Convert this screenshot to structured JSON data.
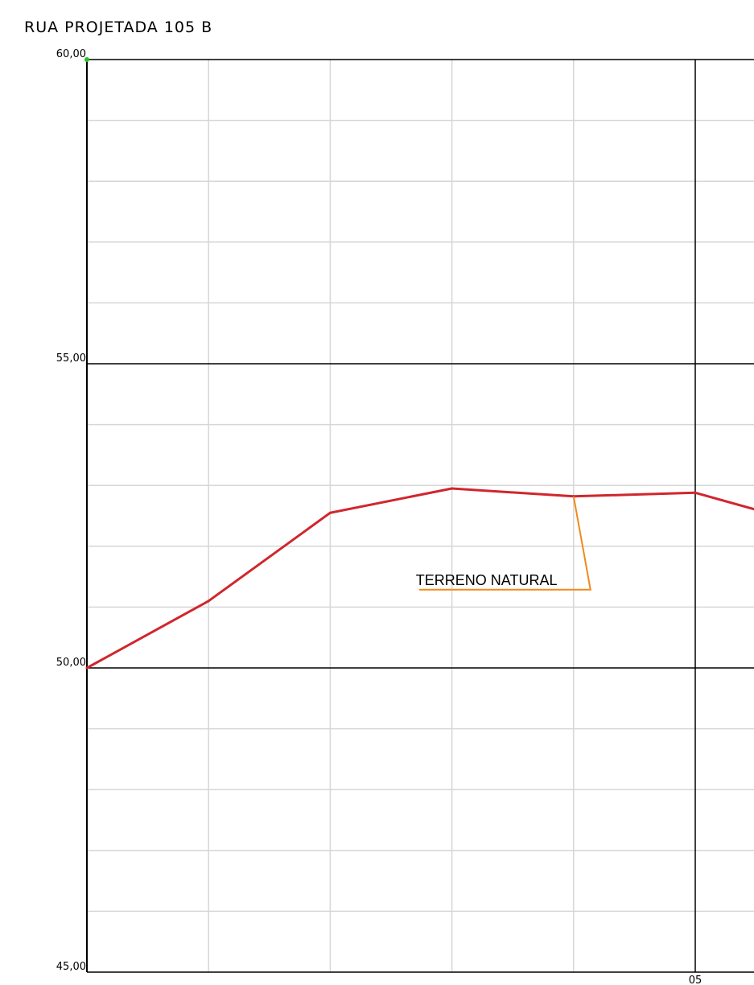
{
  "chart_data": {
    "type": "line",
    "title": "RUA PROJETADA 105 B",
    "xlabel": "",
    "ylabel": "",
    "ylim": [
      45,
      60
    ],
    "xlim": [
      0,
      5.5
    ],
    "grid": true,
    "y_ticks": [
      {
        "value": 60,
        "label": "60,00"
      },
      {
        "value": 55,
        "label": "55,00"
      },
      {
        "value": 50,
        "label": "50,00"
      },
      {
        "value": 45,
        "label": "45,00"
      }
    ],
    "x_ticks": [
      {
        "value": 5,
        "label": "05"
      }
    ],
    "series": [
      {
        "name": "TERRENO NATURAL",
        "color": "#d0262d",
        "x": [
          0,
          1,
          2,
          3,
          4,
          5,
          5.5
        ],
        "y": [
          50.0,
          51.1,
          52.55,
          52.95,
          52.82,
          52.88,
          52.6
        ]
      }
    ],
    "annotations": [
      {
        "text": "TERRENO NATURAL",
        "x": 4,
        "y": 52.82,
        "color": "#f08a1c"
      }
    ]
  }
}
